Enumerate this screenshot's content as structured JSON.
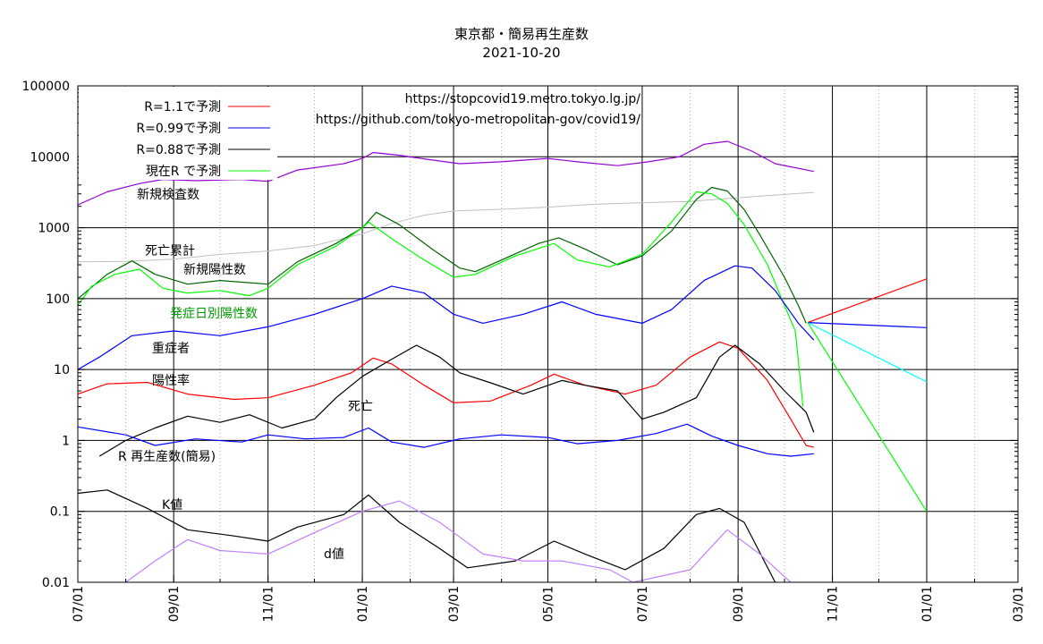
{
  "title": "東京都・簡易再生産数",
  "subtitle": "2021-10-20",
  "chart_data": {
    "type": "line",
    "title": "東京都・簡易再生産数",
    "subtitle": "2021-10-20",
    "yscale": "log",
    "ylim": [
      0.01,
      100000
    ],
    "xlim": [
      "2020-07-01",
      "2022-03-01"
    ],
    "y_tick_labels": [
      "100000",
      "10000",
      "1000",
      "100",
      "10",
      "1",
      "0.1",
      "0.01"
    ],
    "x_tick_labels": [
      "07/01",
      "09/01",
      "11/01",
      "01/01",
      "03/01",
      "05/01",
      "07/01",
      "09/01",
      "11/01",
      "01/01",
      "03/01"
    ],
    "grid": true,
    "legend_position": "top-left",
    "legend": [
      "R=1.1で予測",
      "R=0.99で予測",
      "R=0.88で予測",
      "現在R で予測"
    ],
    "sources": [
      "https://stopcovid19.metro.tokyo.lg.jp/",
      "https://github.com/tokyo-metropolitan-gov/covid19/"
    ],
    "series_labels": {
      "tests": "新規検査数",
      "cum_deaths": "死亡累計",
      "new_pos": "新規陽性数",
      "onset": "発症日別陽性数",
      "severe": "重症者",
      "pos_rate": "陽性率",
      "deaths": "死亡",
      "r_value": "R  再生産数(簡易)",
      "k_value": "K値",
      "d_value": "d値"
    },
    "colors": {
      "tests": "#9400d3",
      "cum_deaths": "#c0c0c0",
      "new_pos": "#006400",
      "onset": "#00ff00",
      "severe": "#0000ff",
      "pos_rate": "#ff0000",
      "deaths": "#000000",
      "r_value": "#0000ff",
      "k_value": "#000000",
      "d_value": "#c080ff",
      "pred_r11": "#ff0000",
      "pred_r099": "#0000ff",
      "pred_r088": "#000000",
      "pred_cur": "#00ff00",
      "pred_cyan": "#00ffff"
    },
    "series": [
      {
        "key": "tests",
        "points": [
          [
            "2020-07-01",
            2100
          ],
          [
            "2020-07-20",
            3200
          ],
          [
            "2020-08-10",
            4200
          ],
          [
            "2020-08-25",
            4800
          ],
          [
            "2020-09-15",
            4600
          ],
          [
            "2020-10-15",
            4800
          ],
          [
            "2020-11-01",
            4500
          ],
          [
            "2020-11-20",
            6500
          ],
          [
            "2020-12-20",
            8000
          ],
          [
            "2021-01-01",
            9500
          ],
          [
            "2021-01-08",
            11500
          ],
          [
            "2021-01-25",
            10500
          ],
          [
            "2021-02-15",
            9000
          ],
          [
            "2021-03-05",
            8000
          ],
          [
            "2021-04-01",
            8500
          ],
          [
            "2021-05-01",
            9500
          ],
          [
            "2021-05-20",
            8500
          ],
          [
            "2021-06-15",
            7500
          ],
          [
            "2021-07-05",
            8500
          ],
          [
            "2021-07-25",
            10000
          ],
          [
            "2021-08-10",
            15000
          ],
          [
            "2021-08-25",
            16500
          ],
          [
            "2021-09-10",
            12000
          ],
          [
            "2021-09-25",
            8000
          ],
          [
            "2021-10-20",
            6200
          ]
        ]
      },
      {
        "key": "cum_deaths",
        "points": [
          [
            "2020-07-01",
            330
          ],
          [
            "2020-08-01",
            335
          ],
          [
            "2020-09-01",
            360
          ],
          [
            "2020-10-01",
            420
          ],
          [
            "2020-11-01",
            470
          ],
          [
            "2020-12-01",
            560
          ],
          [
            "2021-01-01",
            820
          ],
          [
            "2021-01-20",
            1150
          ],
          [
            "2021-02-10",
            1500
          ],
          [
            "2021-03-01",
            1720
          ],
          [
            "2021-04-01",
            1820
          ],
          [
            "2021-05-01",
            1950
          ],
          [
            "2021-06-01",
            2150
          ],
          [
            "2021-07-01",
            2250
          ],
          [
            "2021-08-01",
            2350
          ],
          [
            "2021-09-01",
            2650
          ],
          [
            "2021-10-20",
            3150
          ]
        ]
      },
      {
        "key": "new_pos",
        "points": [
          [
            "2020-07-01",
            100
          ],
          [
            "2020-07-20",
            220
          ],
          [
            "2020-08-05",
            340
          ],
          [
            "2020-08-20",
            220
          ],
          [
            "2020-09-10",
            160
          ],
          [
            "2020-10-01",
            180
          ],
          [
            "2020-11-01",
            160
          ],
          [
            "2020-11-20",
            330
          ],
          [
            "2020-12-15",
            600
          ],
          [
            "2021-01-01",
            1000
          ],
          [
            "2021-01-10",
            1650
          ],
          [
            "2021-01-25",
            1100
          ],
          [
            "2021-02-15",
            500
          ],
          [
            "2021-03-05",
            270
          ],
          [
            "2021-03-15",
            240
          ],
          [
            "2021-04-01",
            350
          ],
          [
            "2021-04-25",
            600
          ],
          [
            "2021-05-08",
            720
          ],
          [
            "2021-05-25",
            500
          ],
          [
            "2021-06-15",
            300
          ],
          [
            "2021-07-01",
            400
          ],
          [
            "2021-07-20",
            900
          ],
          [
            "2021-08-05",
            2500
          ],
          [
            "2021-08-15",
            3700
          ],
          [
            "2021-08-25",
            3300
          ],
          [
            "2021-09-05",
            1800
          ],
          [
            "2021-09-15",
            800
          ],
          [
            "2021-10-01",
            200
          ],
          [
            "2021-10-10",
            80
          ],
          [
            "2021-10-15",
            45
          ]
        ]
      },
      {
        "key": "onset",
        "points": [
          [
            "2020-07-01",
            80
          ],
          [
            "2020-07-10",
            150
          ],
          [
            "2020-07-25",
            220
          ],
          [
            "2020-08-10",
            260
          ],
          [
            "2020-08-25",
            140
          ],
          [
            "2020-09-10",
            120
          ],
          [
            "2020-10-01",
            130
          ],
          [
            "2020-10-20",
            110
          ],
          [
            "2020-11-01",
            140
          ],
          [
            "2020-11-20",
            300
          ],
          [
            "2020-12-15",
            550
          ],
          [
            "2021-01-01",
            1000
          ],
          [
            "2021-01-05",
            1200
          ],
          [
            "2021-01-20",
            700
          ],
          [
            "2021-02-10",
            350
          ],
          [
            "2021-03-01",
            200
          ],
          [
            "2021-03-15",
            220
          ],
          [
            "2021-04-10",
            400
          ],
          [
            "2021-05-05",
            600
          ],
          [
            "2021-05-20",
            350
          ],
          [
            "2021-06-10",
            280
          ],
          [
            "2021-07-01",
            420
          ],
          [
            "2021-07-20",
            1200
          ],
          [
            "2021-08-05",
            3200
          ],
          [
            "2021-08-15",
            3000
          ],
          [
            "2021-08-25",
            2200
          ],
          [
            "2021-09-05",
            1100
          ],
          [
            "2021-09-20",
            300
          ],
          [
            "2021-10-01",
            80
          ],
          [
            "2021-10-08",
            35
          ],
          [
            "2021-10-13",
            3
          ]
        ]
      },
      {
        "key": "severe",
        "points": [
          [
            "2020-07-01",
            10
          ],
          [
            "2020-07-15",
            15
          ],
          [
            "2020-08-05",
            30
          ],
          [
            "2020-09-01",
            35
          ],
          [
            "2020-10-01",
            30
          ],
          [
            "2020-11-01",
            40
          ],
          [
            "2020-12-01",
            60
          ],
          [
            "2021-01-01",
            100
          ],
          [
            "2021-01-20",
            150
          ],
          [
            "2021-02-10",
            120
          ],
          [
            "2021-03-01",
            60
          ],
          [
            "2021-03-20",
            45
          ],
          [
            "2021-04-15",
            60
          ],
          [
            "2021-05-10",
            90
          ],
          [
            "2021-06-01",
            60
          ],
          [
            "2021-07-01",
            45
          ],
          [
            "2021-07-20",
            70
          ],
          [
            "2021-08-10",
            180
          ],
          [
            "2021-08-30",
            290
          ],
          [
            "2021-09-10",
            270
          ],
          [
            "2021-09-25",
            130
          ],
          [
            "2021-10-10",
            45
          ],
          [
            "2021-10-20",
            26
          ]
        ]
      },
      {
        "key": "pos_rate",
        "points": [
          [
            "2020-07-01",
            4.5
          ],
          [
            "2020-07-20",
            6.3
          ],
          [
            "2020-08-15",
            6.6
          ],
          [
            "2020-09-10",
            4.5
          ],
          [
            "2020-10-10",
            3.8
          ],
          [
            "2020-11-01",
            4.0
          ],
          [
            "2020-12-01",
            6.0
          ],
          [
            "2020-12-25",
            9.0
          ],
          [
            "2021-01-08",
            14.5
          ],
          [
            "2021-01-20",
            12.0
          ],
          [
            "2021-02-10",
            6.0
          ],
          [
            "2021-03-01",
            3.4
          ],
          [
            "2021-03-25",
            3.6
          ],
          [
            "2021-04-20",
            6.0
          ],
          [
            "2021-05-05",
            8.6
          ],
          [
            "2021-05-25",
            6.0
          ],
          [
            "2021-06-20",
            4.5
          ],
          [
            "2021-07-10",
            6.0
          ],
          [
            "2021-08-01",
            15.0
          ],
          [
            "2021-08-20",
            24.5
          ],
          [
            "2021-09-01",
            20.0
          ],
          [
            "2021-09-20",
            7.0
          ],
          [
            "2021-10-05",
            2.0
          ],
          [
            "2021-10-15",
            0.85
          ],
          [
            "2021-10-20",
            0.8
          ]
        ]
      },
      {
        "key": "deaths",
        "points": [
          [
            "2020-07-15",
            0.6
          ],
          [
            "2020-08-01",
            1.0
          ],
          [
            "2020-08-20",
            1.5
          ],
          [
            "2020-09-10",
            2.2
          ],
          [
            "2020-10-01",
            1.8
          ],
          [
            "2020-10-20",
            2.3
          ],
          [
            "2020-11-10",
            1.5
          ],
          [
            "2020-12-01",
            2.0
          ],
          [
            "2020-12-15",
            4.0
          ],
          [
            "2021-01-01",
            8.0
          ],
          [
            "2021-01-20",
            14.0
          ],
          [
            "2021-02-05",
            22.0
          ],
          [
            "2021-02-20",
            15.0
          ],
          [
            "2021-03-05",
            9.0
          ],
          [
            "2021-03-25",
            6.5
          ],
          [
            "2021-04-15",
            4.5
          ],
          [
            "2021-05-10",
            7.0
          ],
          [
            "2021-05-25",
            6.0
          ],
          [
            "2021-06-15",
            5.0
          ],
          [
            "2021-07-01",
            2.0
          ],
          [
            "2021-07-15",
            2.5
          ],
          [
            "2021-08-05",
            4.0
          ],
          [
            "2021-08-20",
            15.0
          ],
          [
            "2021-08-30",
            22.0
          ],
          [
            "2021-09-15",
            12.0
          ],
          [
            "2021-10-01",
            5.0
          ],
          [
            "2021-10-15",
            2.5
          ],
          [
            "2021-10-20",
            1.3
          ]
        ]
      },
      {
        "key": "r_value",
        "points": [
          [
            "2020-07-01",
            1.55
          ],
          [
            "2020-08-01",
            1.2
          ],
          [
            "2020-08-20",
            0.85
          ],
          [
            "2020-09-15",
            1.05
          ],
          [
            "2020-10-15",
            0.95
          ],
          [
            "2020-11-01",
            1.2
          ],
          [
            "2020-11-25",
            1.05
          ],
          [
            "2020-12-20",
            1.1
          ],
          [
            "2021-01-05",
            1.5
          ],
          [
            "2021-01-20",
            0.95
          ],
          [
            "2021-02-10",
            0.8
          ],
          [
            "2021-03-05",
            1.05
          ],
          [
            "2021-04-01",
            1.2
          ],
          [
            "2021-05-01",
            1.1
          ],
          [
            "2021-05-20",
            0.9
          ],
          [
            "2021-06-15",
            1.0
          ],
          [
            "2021-07-10",
            1.25
          ],
          [
            "2021-07-30",
            1.7
          ],
          [
            "2021-08-15",
            1.15
          ],
          [
            "2021-09-01",
            0.85
          ],
          [
            "2021-09-20",
            0.65
          ],
          [
            "2021-10-05",
            0.6
          ],
          [
            "2021-10-20",
            0.65
          ]
        ]
      },
      {
        "key": "k_value",
        "points": [
          [
            "2020-07-01",
            0.18
          ],
          [
            "2020-07-20",
            0.2
          ],
          [
            "2020-08-15",
            0.11
          ],
          [
            "2020-09-10",
            0.055
          ],
          [
            "2020-10-10",
            0.045
          ],
          [
            "2020-11-01",
            0.038
          ],
          [
            "2020-11-20",
            0.06
          ],
          [
            "2020-12-20",
            0.09
          ],
          [
            "2021-01-05",
            0.17
          ],
          [
            "2021-01-25",
            0.07
          ],
          [
            "2021-02-20",
            0.03
          ],
          [
            "2021-03-10",
            0.016
          ],
          [
            "2021-04-10",
            0.02
          ],
          [
            "2021-05-05",
            0.038
          ],
          [
            "2021-05-25",
            0.025
          ],
          [
            "2021-06-20",
            0.015
          ],
          [
            "2021-07-15",
            0.03
          ],
          [
            "2021-08-05",
            0.09
          ],
          [
            "2021-08-20",
            0.11
          ],
          [
            "2021-09-05",
            0.07
          ],
          [
            "2021-09-25",
            0.01
          ]
        ]
      },
      {
        "key": "d_value",
        "points": [
          [
            "2020-08-01",
            0.01
          ],
          [
            "2020-08-20",
            0.02
          ],
          [
            "2020-09-10",
            0.04
          ],
          [
            "2020-10-01",
            0.028
          ],
          [
            "2020-11-01",
            0.025
          ],
          [
            "2020-12-01",
            0.05
          ],
          [
            "2021-01-01",
            0.1
          ],
          [
            "2021-01-25",
            0.14
          ],
          [
            "2021-02-20",
            0.07
          ],
          [
            "2021-03-20",
            0.025
          ],
          [
            "2021-04-15",
            0.02
          ],
          [
            "2021-05-10",
            0.02
          ],
          [
            "2021-06-10",
            0.015
          ],
          [
            "2021-06-25",
            0.01
          ],
          [
            "2021-08-01",
            0.015
          ],
          [
            "2021-08-25",
            0.055
          ],
          [
            "2021-09-15",
            0.025
          ],
          [
            "2021-10-05",
            0.01
          ]
        ]
      },
      {
        "key": "pred_r11",
        "points": [
          [
            "2021-10-16",
            46
          ],
          [
            "2022-01-01",
            190
          ]
        ]
      },
      {
        "key": "pred_r099",
        "points": [
          [
            "2021-10-16",
            46
          ],
          [
            "2022-01-01",
            39
          ]
        ]
      },
      {
        "key": "pred_cyan",
        "points": [
          [
            "2021-10-16",
            46
          ],
          [
            "2022-01-01",
            6.7
          ]
        ]
      },
      {
        "key": "pred_cur",
        "points": [
          [
            "2021-10-16",
            46
          ],
          [
            "2022-01-01",
            0.1
          ]
        ]
      }
    ]
  }
}
